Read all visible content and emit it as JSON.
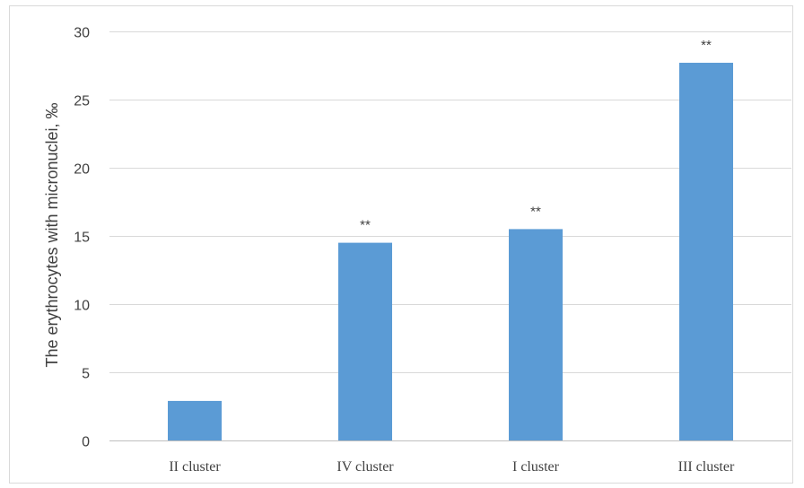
{
  "chart_data": {
    "type": "bar",
    "title": "",
    "xlabel": "",
    "ylabel": "The erythrocytes with micronuclei, ‰",
    "categories": [
      "II cluster",
      "IV cluster",
      "I cluster",
      "III cluster"
    ],
    "values": [
      2.9,
      14.5,
      15.5,
      27.7
    ],
    "annotations": [
      "",
      "**",
      "**",
      "**"
    ],
    "ylim": [
      0,
      30
    ],
    "yticks": [
      0,
      5,
      10,
      15,
      20,
      25,
      30
    ],
    "grid": true,
    "legend": "none",
    "bar_color": "#5b9bd5"
  }
}
